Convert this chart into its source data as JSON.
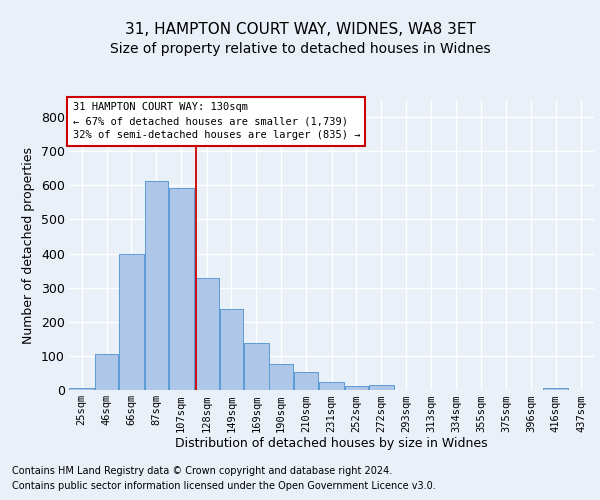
{
  "title1": "31, HAMPTON COURT WAY, WIDNES, WA8 3ET",
  "title2": "Size of property relative to detached houses in Widnes",
  "xlabel": "Distribution of detached houses by size in Widnes",
  "ylabel": "Number of detached properties",
  "footnote1": "Contains HM Land Registry data © Crown copyright and database right 2024.",
  "footnote2": "Contains public sector information licensed under the Open Government Licence v3.0.",
  "annotation_line1": "31 HAMPTON COURT WAY: 130sqm",
  "annotation_line2": "← 67% of detached houses are smaller (1,739)",
  "annotation_line3": "32% of semi-detached houses are larger (835) →",
  "property_size": 130,
  "bar_labels": [
    "25sqm",
    "46sqm",
    "66sqm",
    "87sqm",
    "107sqm",
    "128sqm",
    "149sqm",
    "169sqm",
    "190sqm",
    "210sqm",
    "231sqm",
    "252sqm",
    "272sqm",
    "293sqm",
    "313sqm",
    "334sqm",
    "355sqm",
    "375sqm",
    "396sqm",
    "416sqm",
    "437sqm"
  ],
  "bar_values": [
    5,
    105,
    400,
    612,
    593,
    328,
    237,
    137,
    77,
    53,
    24,
    12,
    16,
    0,
    0,
    0,
    0,
    0,
    0,
    6,
    0
  ],
  "bar_edges": [
    25,
    46,
    66,
    87,
    107,
    128,
    149,
    169,
    190,
    210,
    231,
    252,
    272,
    293,
    313,
    334,
    355,
    375,
    396,
    416,
    437,
    458
  ],
  "bar_color": "#aec6e8",
  "bar_edge_color": "#5b9bd5",
  "vline_x": 130,
  "vline_color": "#cc0000",
  "ylim": [
    0,
    850
  ],
  "xlim": [
    25,
    458
  ],
  "bg_color": "#eaf0f8",
  "grid_color": "#ffffff",
  "annotation_box_color": "#cc0000",
  "title_fontsize": 11,
  "subtitle_fontsize": 10,
  "ylabel_fontsize": 9,
  "xlabel_fontsize": 9,
  "tick_fontsize": 7.5,
  "footnote_fontsize": 7
}
